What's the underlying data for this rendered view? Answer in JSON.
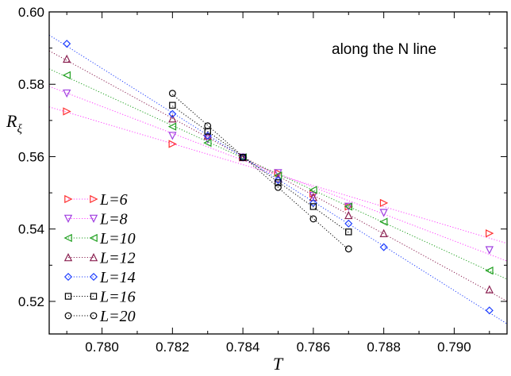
{
  "chart_data": {
    "type": "scatter",
    "title": "",
    "annotation": "along the N line",
    "xlabel": "T",
    "ylabel_main": "R",
    "ylabel_sub": "ξ",
    "xlim": [
      0.7785,
      0.7915
    ],
    "ylim": [
      0.511,
      0.6
    ],
    "xticks": [
      0.78,
      0.782,
      0.784,
      0.786,
      0.788,
      0.79
    ],
    "xtick_labels": [
      "0.780",
      "0.782",
      "0.784",
      "0.786",
      "0.788",
      "0.790"
    ],
    "yticks": [
      0.52,
      0.54,
      0.56,
      0.58,
      0.6
    ],
    "ytick_labels": [
      "0.52",
      "0.54",
      "0.56",
      "0.58",
      "0.60"
    ],
    "legend_position": "bottom-left",
    "series": [
      {
        "name": "L=6",
        "color": "#ff3030",
        "line_color": "#ff40ff",
        "marker": "triangle-right",
        "x": [
          0.779,
          0.782,
          0.784,
          0.785,
          0.786,
          0.787,
          0.788,
          0.791
        ],
        "y": [
          0.5725,
          0.5635,
          0.5598,
          0.5555,
          0.5498,
          0.5462,
          0.5472,
          0.5388
        ]
      },
      {
        "name": "L=8",
        "color": "#a040e0",
        "line_color": "#ff40ff",
        "marker": "triangle-down",
        "x": [
          0.779,
          0.782,
          0.783,
          0.784,
          0.785,
          0.786,
          0.787,
          0.788,
          0.791
        ],
        "y": [
          0.5775,
          0.5658,
          0.5648,
          0.5598,
          0.5555,
          0.5492,
          0.5462,
          0.5445,
          0.5342
        ]
      },
      {
        "name": "L=10",
        "color": "#20a020",
        "line_color": "#20a020",
        "marker": "triangle-left",
        "x": [
          0.779,
          0.782,
          0.783,
          0.784,
          0.785,
          0.786,
          0.787,
          0.788,
          0.791
        ],
        "y": [
          0.5825,
          0.5683,
          0.5638,
          0.5598,
          0.5548,
          0.5508,
          0.5462,
          0.542,
          0.5285
        ]
      },
      {
        "name": "L=12",
        "color": "#8b2252",
        "line_color": "#8b2252",
        "marker": "triangle-up",
        "x": [
          0.779,
          0.782,
          0.783,
          0.784,
          0.785,
          0.786,
          0.787,
          0.788,
          0.791
        ],
        "y": [
          0.587,
          0.5705,
          0.5658,
          0.5598,
          0.554,
          0.5488,
          0.5438,
          0.5388,
          0.5233
        ]
      },
      {
        "name": "L=14",
        "color": "#2040ff",
        "line_color": "#2040ff",
        "marker": "diamond",
        "x": [
          0.779,
          0.782,
          0.783,
          0.784,
          0.785,
          0.786,
          0.787,
          0.788,
          0.791
        ],
        "y": [
          0.5912,
          0.5718,
          0.5658,
          0.5598,
          0.5535,
          0.5472,
          0.5415,
          0.535,
          0.5175
        ]
      },
      {
        "name": "L=16",
        "color": "#000000",
        "line_color": "#000000",
        "marker": "square",
        "x": [
          0.782,
          0.783,
          0.784,
          0.785,
          0.786,
          0.787
        ],
        "y": [
          0.5742,
          0.567,
          0.5598,
          0.5528,
          0.5462,
          0.5392
        ]
      },
      {
        "name": "L=20",
        "color": "#000000",
        "line_color": "#000000",
        "marker": "circle",
        "x": [
          0.782,
          0.783,
          0.784,
          0.785,
          0.786,
          0.787
        ],
        "y": [
          0.5775,
          0.5685,
          0.5598,
          0.5515,
          0.5428,
          0.5345
        ]
      }
    ]
  }
}
